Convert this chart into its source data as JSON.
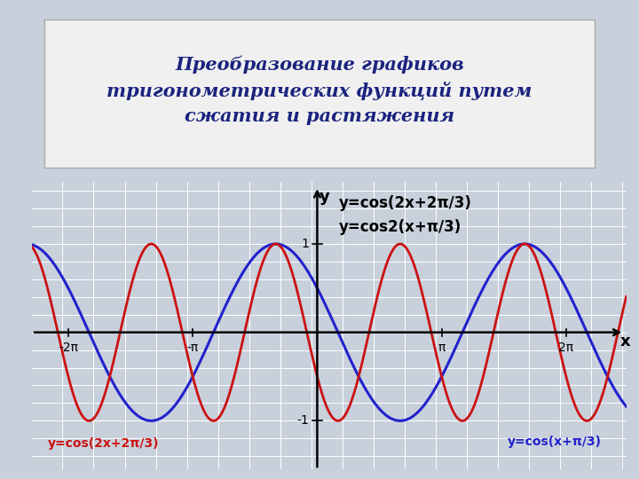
{
  "title": "Преобразование графиков\nтригонометрических функций путем\nсжатия и растяжения",
  "title_color": "#1a237e",
  "title_fontsize": 15,
  "bg_outer": "#c8d0dc",
  "bg_title_box": "#f0f0f0",
  "bg_plot": "#d0d8e0",
  "grid_color": "#ffffff",
  "separator_color": "#8899aa",
  "curve1_color": "#2222cc",
  "curve2_color": "#cc1111",
  "curve1_label": "y=cos(x+π/3)",
  "curve2_label": "y=cos(2x+2π/3)",
  "legend_label1": "y=cos(2x+2π/3)",
  "legend_label2": "y=cos2(x+π/3)",
  "xlim": [
    -7.2,
    7.8
  ],
  "ylim": [
    -1.55,
    1.7
  ],
  "x_axis_y": 0.0,
  "xticks_vals": [
    -6.283185307,
    -3.141592653,
    3.141592653,
    6.283185307
  ],
  "xticks_labels": [
    "-2π",
    "-π",
    "π",
    "2π"
  ],
  "axis_color": "#000000",
  "label_fontsize": 11,
  "annotation_fontsize": 10,
  "tick_fontsize": 10
}
